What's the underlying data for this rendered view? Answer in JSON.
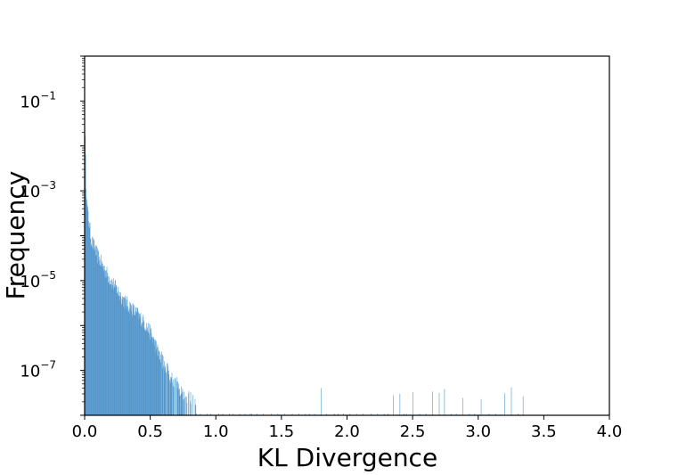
{
  "chart_data": {
    "type": "histogram",
    "xlabel": "KL Divergence",
    "ylabel": "Frequency",
    "xlim": [
      0.0,
      4.0
    ],
    "ylim": [
      1e-08,
      1.0
    ],
    "yscale": "log",
    "grid": false,
    "bar_color": "#4a90c8",
    "x_ticks": [
      "0.0",
      "0.5",
      "1.0",
      "1.5",
      "2.0",
      "2.5",
      "3.0",
      "3.5",
      "4.0"
    ],
    "y_ticks": [
      {
        "base": "10",
        "exp": "−1",
        "value": 0.1
      },
      {
        "base": "10",
        "exp": "−3",
        "value": 0.001
      },
      {
        "base": "10",
        "exp": "−5",
        "value": 1e-05
      },
      {
        "base": "10",
        "exp": "−7",
        "value": 1e-07
      }
    ],
    "envelope": [
      [
        0.0,
        0.06
      ],
      [
        0.01,
        0.0015
      ],
      [
        0.02,
        0.0004
      ],
      [
        0.05,
        8e-05
      ],
      [
        0.1,
        3.5e-05
      ],
      [
        0.15,
        1.8e-05
      ],
      [
        0.2,
        1e-05
      ],
      [
        0.25,
        6e-06
      ],
      [
        0.3,
        3.5e-06
      ],
      [
        0.35,
        2.5e-06
      ],
      [
        0.4,
        1.8e-06
      ],
      [
        0.45,
        1.2e-06
      ],
      [
        0.5,
        7e-07
      ],
      [
        0.55,
        3e-07
      ],
      [
        0.6,
        1.5e-07
      ],
      [
        0.65,
        8e-08
      ],
      [
        0.7,
        5e-08
      ],
      [
        0.75,
        3e-08
      ],
      [
        0.8,
        2.5e-08
      ],
      [
        0.9,
        1.8e-08
      ],
      [
        1.0,
        1.4e-08
      ],
      [
        1.2,
        1.2e-08
      ],
      [
        1.5,
        1.1e-08
      ],
      [
        2.0,
        1.1e-08
      ],
      [
        2.5,
        1.1e-08
      ],
      [
        3.0,
        1.1e-08
      ],
      [
        3.35,
        1.1e-08
      ]
    ],
    "sparse_bars_x": [
      0.85,
      0.88,
      0.93,
      0.96,
      1.02,
      1.05,
      1.1,
      1.13,
      1.18,
      1.22,
      1.26,
      1.27,
      1.31,
      1.36,
      1.42,
      1.47,
      1.52,
      1.58,
      1.63,
      1.68,
      1.71,
      1.75,
      1.8,
      1.84,
      1.9,
      1.93,
      1.97,
      2.02,
      2.07,
      2.12,
      2.18,
      2.23,
      2.28,
      2.31,
      2.35,
      2.4,
      2.43,
      2.45,
      2.5,
      2.55,
      2.6,
      2.65,
      2.7,
      2.74,
      2.79,
      2.83,
      2.88,
      2.93,
      2.97,
      3.02,
      3.08,
      3.13,
      3.2,
      3.25,
      3.3,
      3.34
    ]
  }
}
